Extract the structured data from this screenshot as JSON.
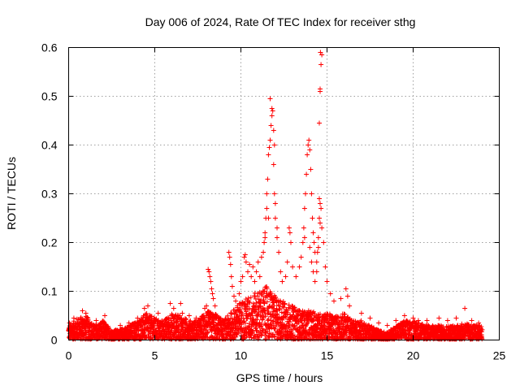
{
  "chart_data": {
    "type": "scatter",
    "title": "Day 006 of 2024, Rate Of TEC Index for receiver sthg",
    "xlabel": "GPS time / hours",
    "ylabel": "ROTI / TECUs",
    "xlim": [
      0,
      25
    ],
    "ylim": [
      0,
      0.6
    ],
    "x_ticks": [
      "0",
      "5",
      "10",
      "15",
      "20",
      "25"
    ],
    "y_ticks": [
      "0",
      "0.1",
      "0.2",
      "0.3",
      "0.4",
      "0.5",
      "0.6"
    ],
    "grid": true,
    "marker": "+",
    "color": "#ff0000",
    "baseline_envelope": [
      [
        0.0,
        0.03
      ],
      [
        0.5,
        0.045
      ],
      [
        1.0,
        0.05
      ],
      [
        1.5,
        0.03
      ],
      [
        2.0,
        0.04
      ],
      [
        2.5,
        0.02
      ],
      [
        3.0,
        0.022
      ],
      [
        3.5,
        0.03
      ],
      [
        4.0,
        0.04
      ],
      [
        4.5,
        0.055
      ],
      [
        5.0,
        0.045
      ],
      [
        5.5,
        0.04
      ],
      [
        6.0,
        0.055
      ],
      [
        6.5,
        0.05
      ],
      [
        7.0,
        0.04
      ],
      [
        7.5,
        0.04
      ],
      [
        8.0,
        0.06
      ],
      [
        8.5,
        0.055
      ],
      [
        9.0,
        0.04
      ],
      [
        9.5,
        0.06
      ],
      [
        10.0,
        0.08
      ],
      [
        10.5,
        0.09
      ],
      [
        11.0,
        0.1
      ],
      [
        11.5,
        0.11
      ],
      [
        12.0,
        0.09
      ],
      [
        12.5,
        0.08
      ],
      [
        13.0,
        0.07
      ],
      [
        13.5,
        0.06
      ],
      [
        14.0,
        0.06
      ],
      [
        14.5,
        0.055
      ],
      [
        15.0,
        0.055
      ],
      [
        15.5,
        0.05
      ],
      [
        16.0,
        0.055
      ],
      [
        16.5,
        0.04
      ],
      [
        17.0,
        0.04
      ],
      [
        17.5,
        0.03
      ],
      [
        18.0,
        0.02
      ],
      [
        18.5,
        0.015
      ],
      [
        19.0,
        0.03
      ],
      [
        19.5,
        0.04
      ],
      [
        20.0,
        0.04
      ],
      [
        20.5,
        0.035
      ],
      [
        21.0,
        0.03
      ],
      [
        21.5,
        0.03
      ],
      [
        22.0,
        0.03
      ],
      [
        22.5,
        0.03
      ],
      [
        23.0,
        0.035
      ],
      [
        23.5,
        0.03
      ],
      [
        24.0,
        0.03
      ]
    ],
    "points": [
      [
        0.05,
        0.035
      ],
      [
        0.3,
        0.045
      ],
      [
        0.8,
        0.06
      ],
      [
        1.0,
        0.055
      ],
      [
        1.6,
        0.04
      ],
      [
        2.1,
        0.05
      ],
      [
        3.0,
        0.03
      ],
      [
        3.5,
        0.035
      ],
      [
        4.0,
        0.045
      ],
      [
        4.4,
        0.065
      ],
      [
        4.6,
        0.07
      ],
      [
        5.2,
        0.055
      ],
      [
        5.9,
        0.075
      ],
      [
        6.1,
        0.065
      ],
      [
        6.5,
        0.075
      ],
      [
        6.6,
        0.055
      ],
      [
        7.0,
        0.05
      ],
      [
        7.4,
        0.045
      ],
      [
        7.9,
        0.065
      ],
      [
        8.0,
        0.07
      ],
      [
        8.1,
        0.145
      ],
      [
        8.15,
        0.14
      ],
      [
        8.2,
        0.13
      ],
      [
        8.25,
        0.12
      ],
      [
        8.3,
        0.105
      ],
      [
        8.35,
        0.095
      ],
      [
        8.4,
        0.085
      ],
      [
        8.5,
        0.07
      ],
      [
        9.3,
        0.18
      ],
      [
        9.35,
        0.17
      ],
      [
        9.4,
        0.155
      ],
      [
        9.45,
        0.13
      ],
      [
        9.5,
        0.11
      ],
      [
        9.6,
        0.09
      ],
      [
        9.7,
        0.08
      ],
      [
        9.9,
        0.095
      ],
      [
        10.0,
        0.12
      ],
      [
        10.1,
        0.13
      ],
      [
        10.2,
        0.17
      ],
      [
        10.25,
        0.175
      ],
      [
        10.3,
        0.16
      ],
      [
        10.4,
        0.14
      ],
      [
        10.5,
        0.155
      ],
      [
        10.6,
        0.13
      ],
      [
        10.7,
        0.15
      ],
      [
        10.8,
        0.12
      ],
      [
        10.9,
        0.14
      ],
      [
        11.0,
        0.16
      ],
      [
        11.1,
        0.13
      ],
      [
        11.2,
        0.17
      ],
      [
        11.3,
        0.18
      ],
      [
        11.35,
        0.2
      ],
      [
        11.4,
        0.22
      ],
      [
        11.45,
        0.25
      ],
      [
        11.5,
        0.3
      ],
      [
        11.55,
        0.33
      ],
      [
        11.6,
        0.38
      ],
      [
        11.65,
        0.395
      ],
      [
        11.7,
        0.41
      ],
      [
        11.75,
        0.44
      ],
      [
        11.8,
        0.46
      ],
      [
        11.85,
        0.47
      ],
      [
        11.9,
        0.43
      ],
      [
        11.95,
        0.4
      ],
      [
        11.7,
        0.495
      ],
      [
        11.8,
        0.475
      ],
      [
        11.9,
        0.36
      ],
      [
        11.5,
        0.27
      ],
      [
        11.6,
        0.25
      ],
      [
        11.4,
        0.21
      ],
      [
        11.95,
        0.3
      ],
      [
        12.0,
        0.28
      ],
      [
        12.0,
        0.25
      ],
      [
        12.1,
        0.23
      ],
      [
        12.1,
        0.21
      ],
      [
        12.2,
        0.18
      ],
      [
        12.3,
        0.14
      ],
      [
        12.4,
        0.12
      ],
      [
        12.6,
        0.13
      ],
      [
        12.8,
        0.23
      ],
      [
        12.85,
        0.22
      ],
      [
        12.9,
        0.2
      ],
      [
        12.7,
        0.16
      ],
      [
        13.0,
        0.15
      ],
      [
        13.2,
        0.13
      ],
      [
        13.4,
        0.15
      ],
      [
        13.5,
        0.17
      ],
      [
        13.6,
        0.2
      ],
      [
        13.65,
        0.23
      ],
      [
        13.7,
        0.27
      ],
      [
        13.75,
        0.3
      ],
      [
        13.8,
        0.34
      ],
      [
        13.85,
        0.38
      ],
      [
        13.9,
        0.4
      ],
      [
        13.95,
        0.41
      ],
      [
        14.0,
        0.39
      ],
      [
        14.05,
        0.35
      ],
      [
        14.1,
        0.3
      ],
      [
        14.15,
        0.25
      ],
      [
        14.2,
        0.22
      ],
      [
        14.25,
        0.2
      ],
      [
        14.3,
        0.18
      ],
      [
        13.7,
        0.21
      ],
      [
        14.0,
        0.19
      ],
      [
        14.1,
        0.16
      ],
      [
        14.2,
        0.14
      ],
      [
        14.4,
        0.16
      ],
      [
        14.45,
        0.18
      ],
      [
        14.5,
        0.21
      ],
      [
        14.55,
        0.25
      ],
      [
        14.6,
        0.28
      ],
      [
        14.65,
        0.27
      ],
      [
        14.6,
        0.24
      ],
      [
        14.5,
        0.19
      ],
      [
        14.4,
        0.14
      ],
      [
        14.3,
        0.12
      ],
      [
        14.55,
        0.445
      ],
      [
        14.6,
        0.515
      ],
      [
        14.6,
        0.51
      ],
      [
        14.65,
        0.565
      ],
      [
        14.7,
        0.585
      ],
      [
        14.62,
        0.59
      ],
      [
        14.55,
        0.29
      ],
      [
        14.7,
        0.23
      ],
      [
        14.8,
        0.2
      ],
      [
        14.9,
        0.15
      ],
      [
        15.0,
        0.12
      ],
      [
        15.2,
        0.095
      ],
      [
        15.4,
        0.08
      ],
      [
        15.8,
        0.085
      ],
      [
        16.1,
        0.105
      ],
      [
        16.2,
        0.09
      ],
      [
        16.3,
        0.07
      ],
      [
        17.0,
        0.055
      ],
      [
        17.5,
        0.045
      ],
      [
        18.0,
        0.035
      ],
      [
        18.5,
        0.03
      ],
      [
        19.0,
        0.04
      ],
      [
        19.5,
        0.05
      ],
      [
        20.0,
        0.045
      ],
      [
        20.3,
        0.04
      ],
      [
        20.8,
        0.04
      ],
      [
        21.5,
        0.045
      ],
      [
        22.0,
        0.04
      ],
      [
        22.5,
        0.045
      ],
      [
        23.0,
        0.065
      ],
      [
        23.4,
        0.04
      ],
      [
        23.8,
        0.035
      ]
    ]
  }
}
